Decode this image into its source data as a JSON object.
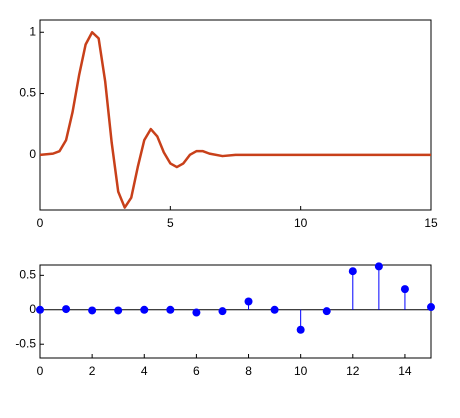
{
  "chart_data": [
    {
      "type": "line",
      "color": "#c8401a",
      "x": [
        0,
        0.5,
        0.75,
        1.0,
        1.25,
        1.5,
        1.75,
        2.0,
        2.25,
        2.5,
        2.75,
        3.0,
        3.25,
        3.5,
        3.75,
        4.0,
        4.25,
        4.5,
        4.75,
        5.0,
        5.25,
        5.5,
        5.75,
        6.0,
        6.25,
        6.5,
        7.0,
        7.5,
        15
      ],
      "values": [
        0,
        0.01,
        0.03,
        0.12,
        0.35,
        0.65,
        0.9,
        1.0,
        0.95,
        0.6,
        0.1,
        -0.3,
        -0.43,
        -0.35,
        -0.1,
        0.12,
        0.21,
        0.15,
        0.02,
        -0.07,
        -0.1,
        -0.07,
        0,
        0.03,
        0.03,
        0.01,
        -0.01,
        0,
        0
      ],
      "xlim": [
        0,
        15
      ],
      "ylim": [
        -0.45,
        1.1
      ],
      "xticks": [
        0,
        5,
        10,
        15
      ],
      "yticks": [
        0,
        0.5,
        1
      ]
    },
    {
      "type": "stem",
      "color": "#0000ff",
      "x": [
        0,
        1,
        2,
        3,
        4,
        5,
        6,
        7,
        8,
        9,
        10,
        11,
        12,
        13,
        14,
        15
      ],
      "values": [
        0,
        0.01,
        -0.01,
        -0.01,
        0,
        0,
        -0.04,
        -0.02,
        0.12,
        0,
        -0.29,
        -0.02,
        0.56,
        0.63,
        0.3,
        0.04
      ],
      "xlim": [
        0,
        15
      ],
      "ylim": [
        -0.7,
        0.65
      ],
      "xticks": [
        0,
        2,
        4,
        6,
        8,
        10,
        12,
        14
      ],
      "yticks": [
        -0.5,
        0,
        0.5
      ]
    }
  ]
}
